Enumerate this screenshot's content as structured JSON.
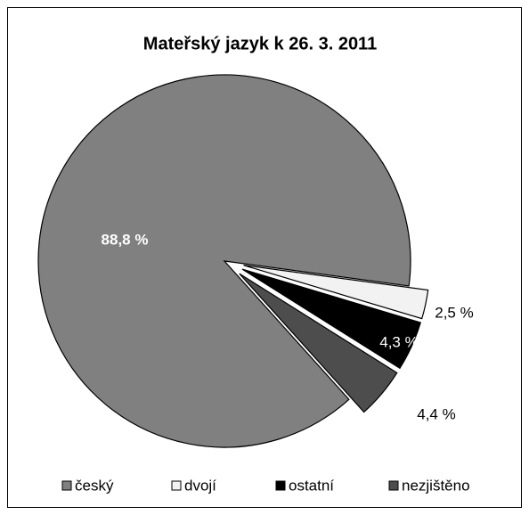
{
  "chart_data": {
    "type": "pie",
    "title": "Mateřský jazyk k 26. 3. 2011",
    "categories": [
      "český",
      "dvojí",
      "ostatní",
      "nezjištěno"
    ],
    "values": [
      88.8,
      2.5,
      4.3,
      4.4
    ],
    "value_labels": [
      "88,8 %",
      "2,5 %",
      "4,3 %",
      "4,4 %"
    ],
    "colors": [
      "#808080",
      "#f2f2f2",
      "#000000",
      "#4d4d4d"
    ],
    "legend": "bottom"
  }
}
